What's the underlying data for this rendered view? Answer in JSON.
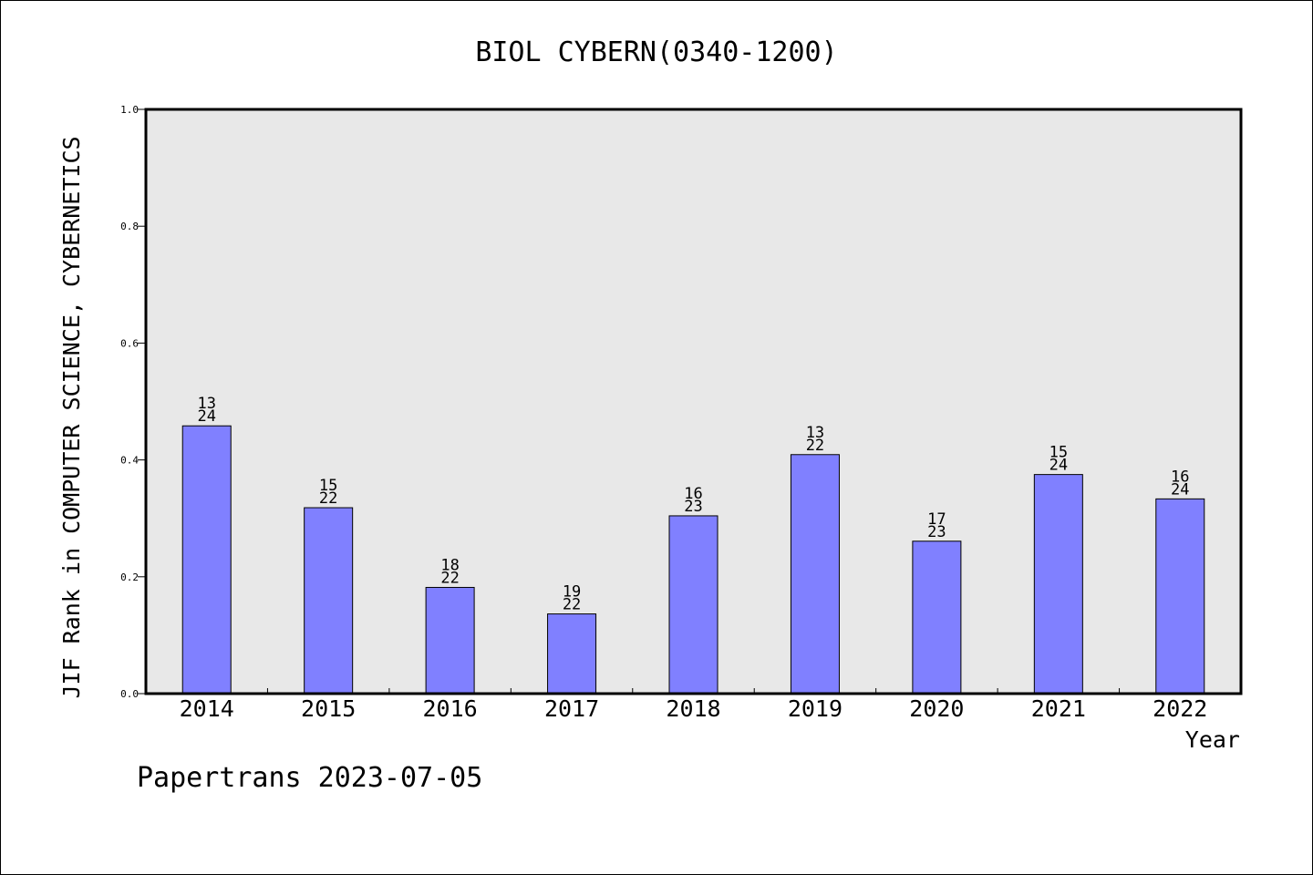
{
  "chart_data": {
    "type": "bar",
    "title": "BIOL CYBERN(0340-1200)",
    "xlabel": "Year",
    "ylabel": "JIF Rank in COMPUTER SCIENCE, CYBERNETICS",
    "ylim": [
      0,
      1.0
    ],
    "yticks": [
      "0.0",
      "0.2",
      "0.4",
      "0.6",
      "0.8",
      "1.0"
    ],
    "categories": [
      "2014",
      "2015",
      "2016",
      "2017",
      "2018",
      "2019",
      "2020",
      "2021",
      "2022"
    ],
    "values": [
      0.4583,
      0.3182,
      0.1818,
      0.1364,
      0.3043,
      0.4091,
      0.2609,
      0.375,
      0.3333
    ],
    "labels_top": [
      "13",
      "15",
      "18",
      "19",
      "16",
      "13",
      "17",
      "15",
      "16"
    ],
    "labels_bottom": [
      "24",
      "22",
      "22",
      "22",
      "23",
      "22",
      "23",
      "24",
      "24"
    ],
    "bar_color": "#8080ff",
    "plot_bg": "#e8e8e8",
    "grid": false,
    "legend": "none"
  },
  "footer": "Papertrans 2023-07-05"
}
